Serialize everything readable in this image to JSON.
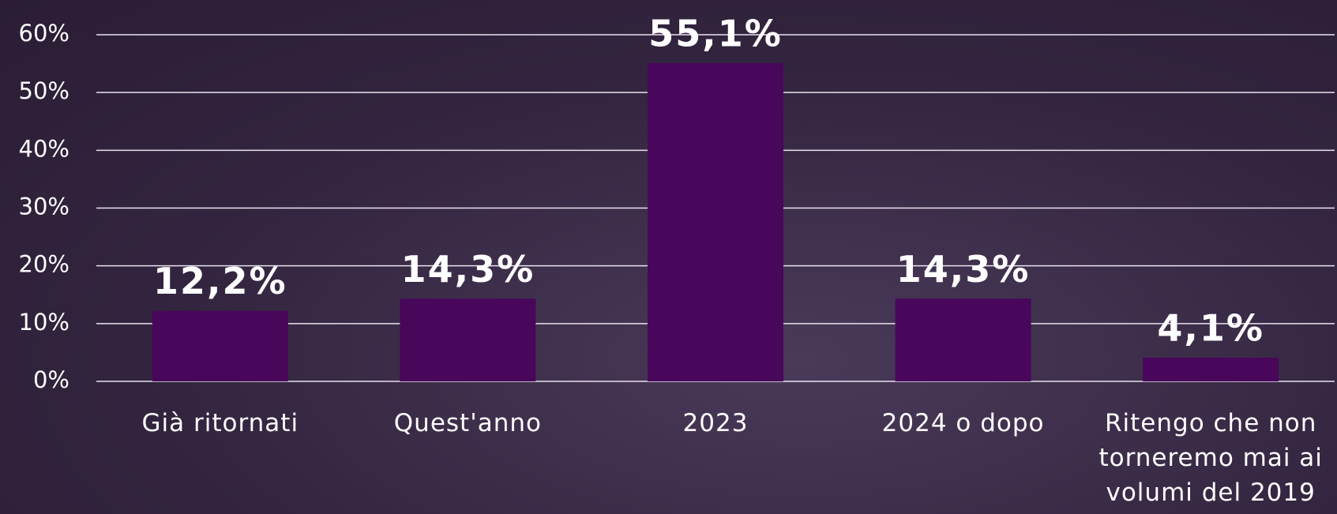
{
  "chart_data": {
    "type": "bar",
    "categories": [
      "Già ritornati",
      "Quest'anno",
      "2023",
      "2024 o dopo",
      "Ritengo che non torneremo mai ai volumi del 2019"
    ],
    "values": [
      12.2,
      14.3,
      55.1,
      14.3,
      4.1
    ],
    "value_labels": [
      "12,2%",
      "14,3%",
      "55,1%",
      "14,3%",
      "4,1%"
    ],
    "color": "#48075a",
    "ylim": [
      0,
      60
    ],
    "yticks": [
      {
        "value": 0,
        "label": "0%"
      },
      {
        "value": 10,
        "label": "10%"
      },
      {
        "value": 20,
        "label": "20%"
      },
      {
        "value": 30,
        "label": "30%"
      },
      {
        "value": 40,
        "label": "40%"
      },
      {
        "value": 50,
        "label": "50%"
      },
      {
        "value": 60,
        "label": "60%"
      }
    ],
    "grid": true
  }
}
